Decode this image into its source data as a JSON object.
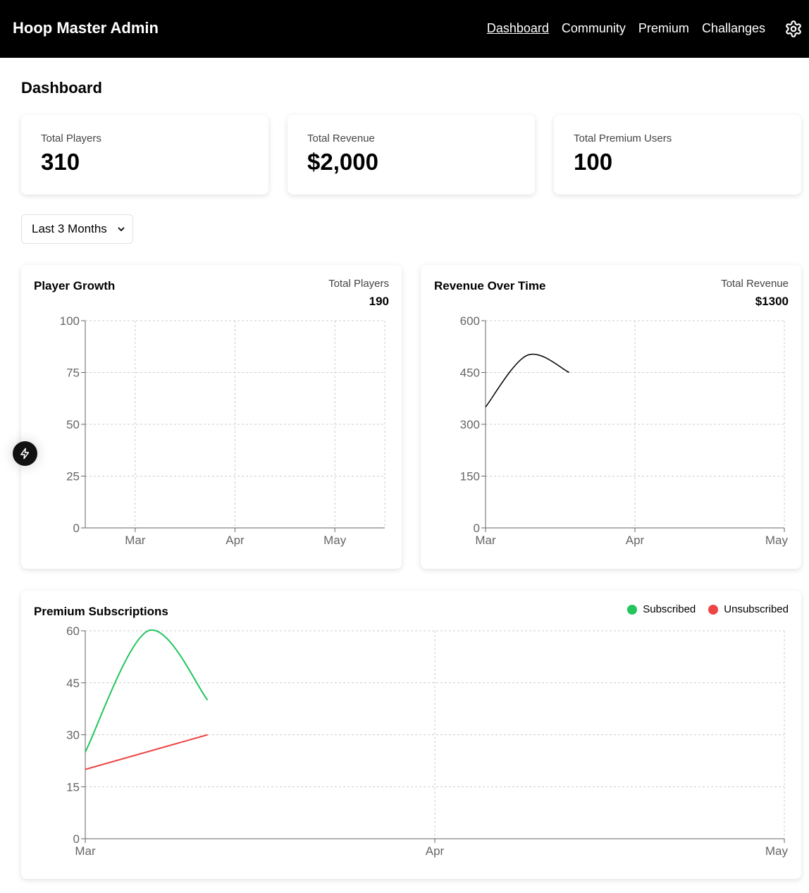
{
  "app": {
    "title": "Hoop Master Admin",
    "nav": [
      {
        "label": "Dashboard",
        "active": true
      },
      {
        "label": "Community",
        "active": false
      },
      {
        "label": "Premium",
        "active": false
      },
      {
        "label": "Challanges",
        "active": false
      }
    ],
    "settings_icon": "gear-icon"
  },
  "page": {
    "title": "Dashboard"
  },
  "stats": [
    {
      "label": "Total Players",
      "value": "310"
    },
    {
      "label": "Total Revenue",
      "value": "$2,000"
    },
    {
      "label": "Total Premium Users",
      "value": "100"
    }
  ],
  "filter": {
    "selected": "Last 3 Months"
  },
  "panels": {
    "player_growth": {
      "title": "Player Growth",
      "sub_label": "Total Players",
      "sub_value": "190"
    },
    "revenue": {
      "title": "Revenue Over Time",
      "sub_label": "Total Revenue",
      "sub_value": "$1300"
    },
    "premium": {
      "title": "Premium Subscriptions"
    }
  },
  "colors": {
    "subscribed": "#22c55e",
    "unsubscribed": "#ef4444",
    "revenue_line": "#000000",
    "grid": "#cccccc",
    "axis": "#666666"
  },
  "chart_data": [
    {
      "id": "player_growth",
      "type": "line",
      "title": "Player Growth",
      "categories": [
        "Mar",
        "Apr",
        "May"
      ],
      "y_ticks": [
        0,
        25,
        50,
        75,
        100
      ],
      "ylim": [
        0,
        100
      ],
      "grid": true,
      "series": []
    },
    {
      "id": "revenue",
      "type": "line",
      "title": "Revenue Over Time",
      "categories": [
        "Mar",
        "Apr",
        "May"
      ],
      "y_ticks": [
        0,
        150,
        300,
        450,
        600
      ],
      "ylim": [
        0,
        600
      ],
      "grid": true,
      "series": [
        {
          "values": [
            [
              0,
              350
            ],
            [
              0.14,
              500
            ],
            [
              0.28,
              450
            ]
          ]
        }
      ]
    },
    {
      "id": "premium",
      "type": "line",
      "title": "Premium Subscriptions",
      "categories": [
        "Mar",
        "Apr",
        "May"
      ],
      "y_ticks": [
        0,
        15,
        30,
        45,
        60
      ],
      "ylim": [
        0,
        60
      ],
      "grid": true,
      "legend": "top-right",
      "series": [
        {
          "name": "Subscribed",
          "color": "#22c55e",
          "values": [
            [
              0,
              25
            ],
            [
              0.09,
              60
            ],
            [
              0.175,
              40
            ]
          ]
        },
        {
          "name": "Unsubscribed",
          "color": "#ef4444",
          "values": [
            [
              0,
              20
            ],
            [
              0.175,
              30
            ]
          ]
        }
      ]
    }
  ]
}
